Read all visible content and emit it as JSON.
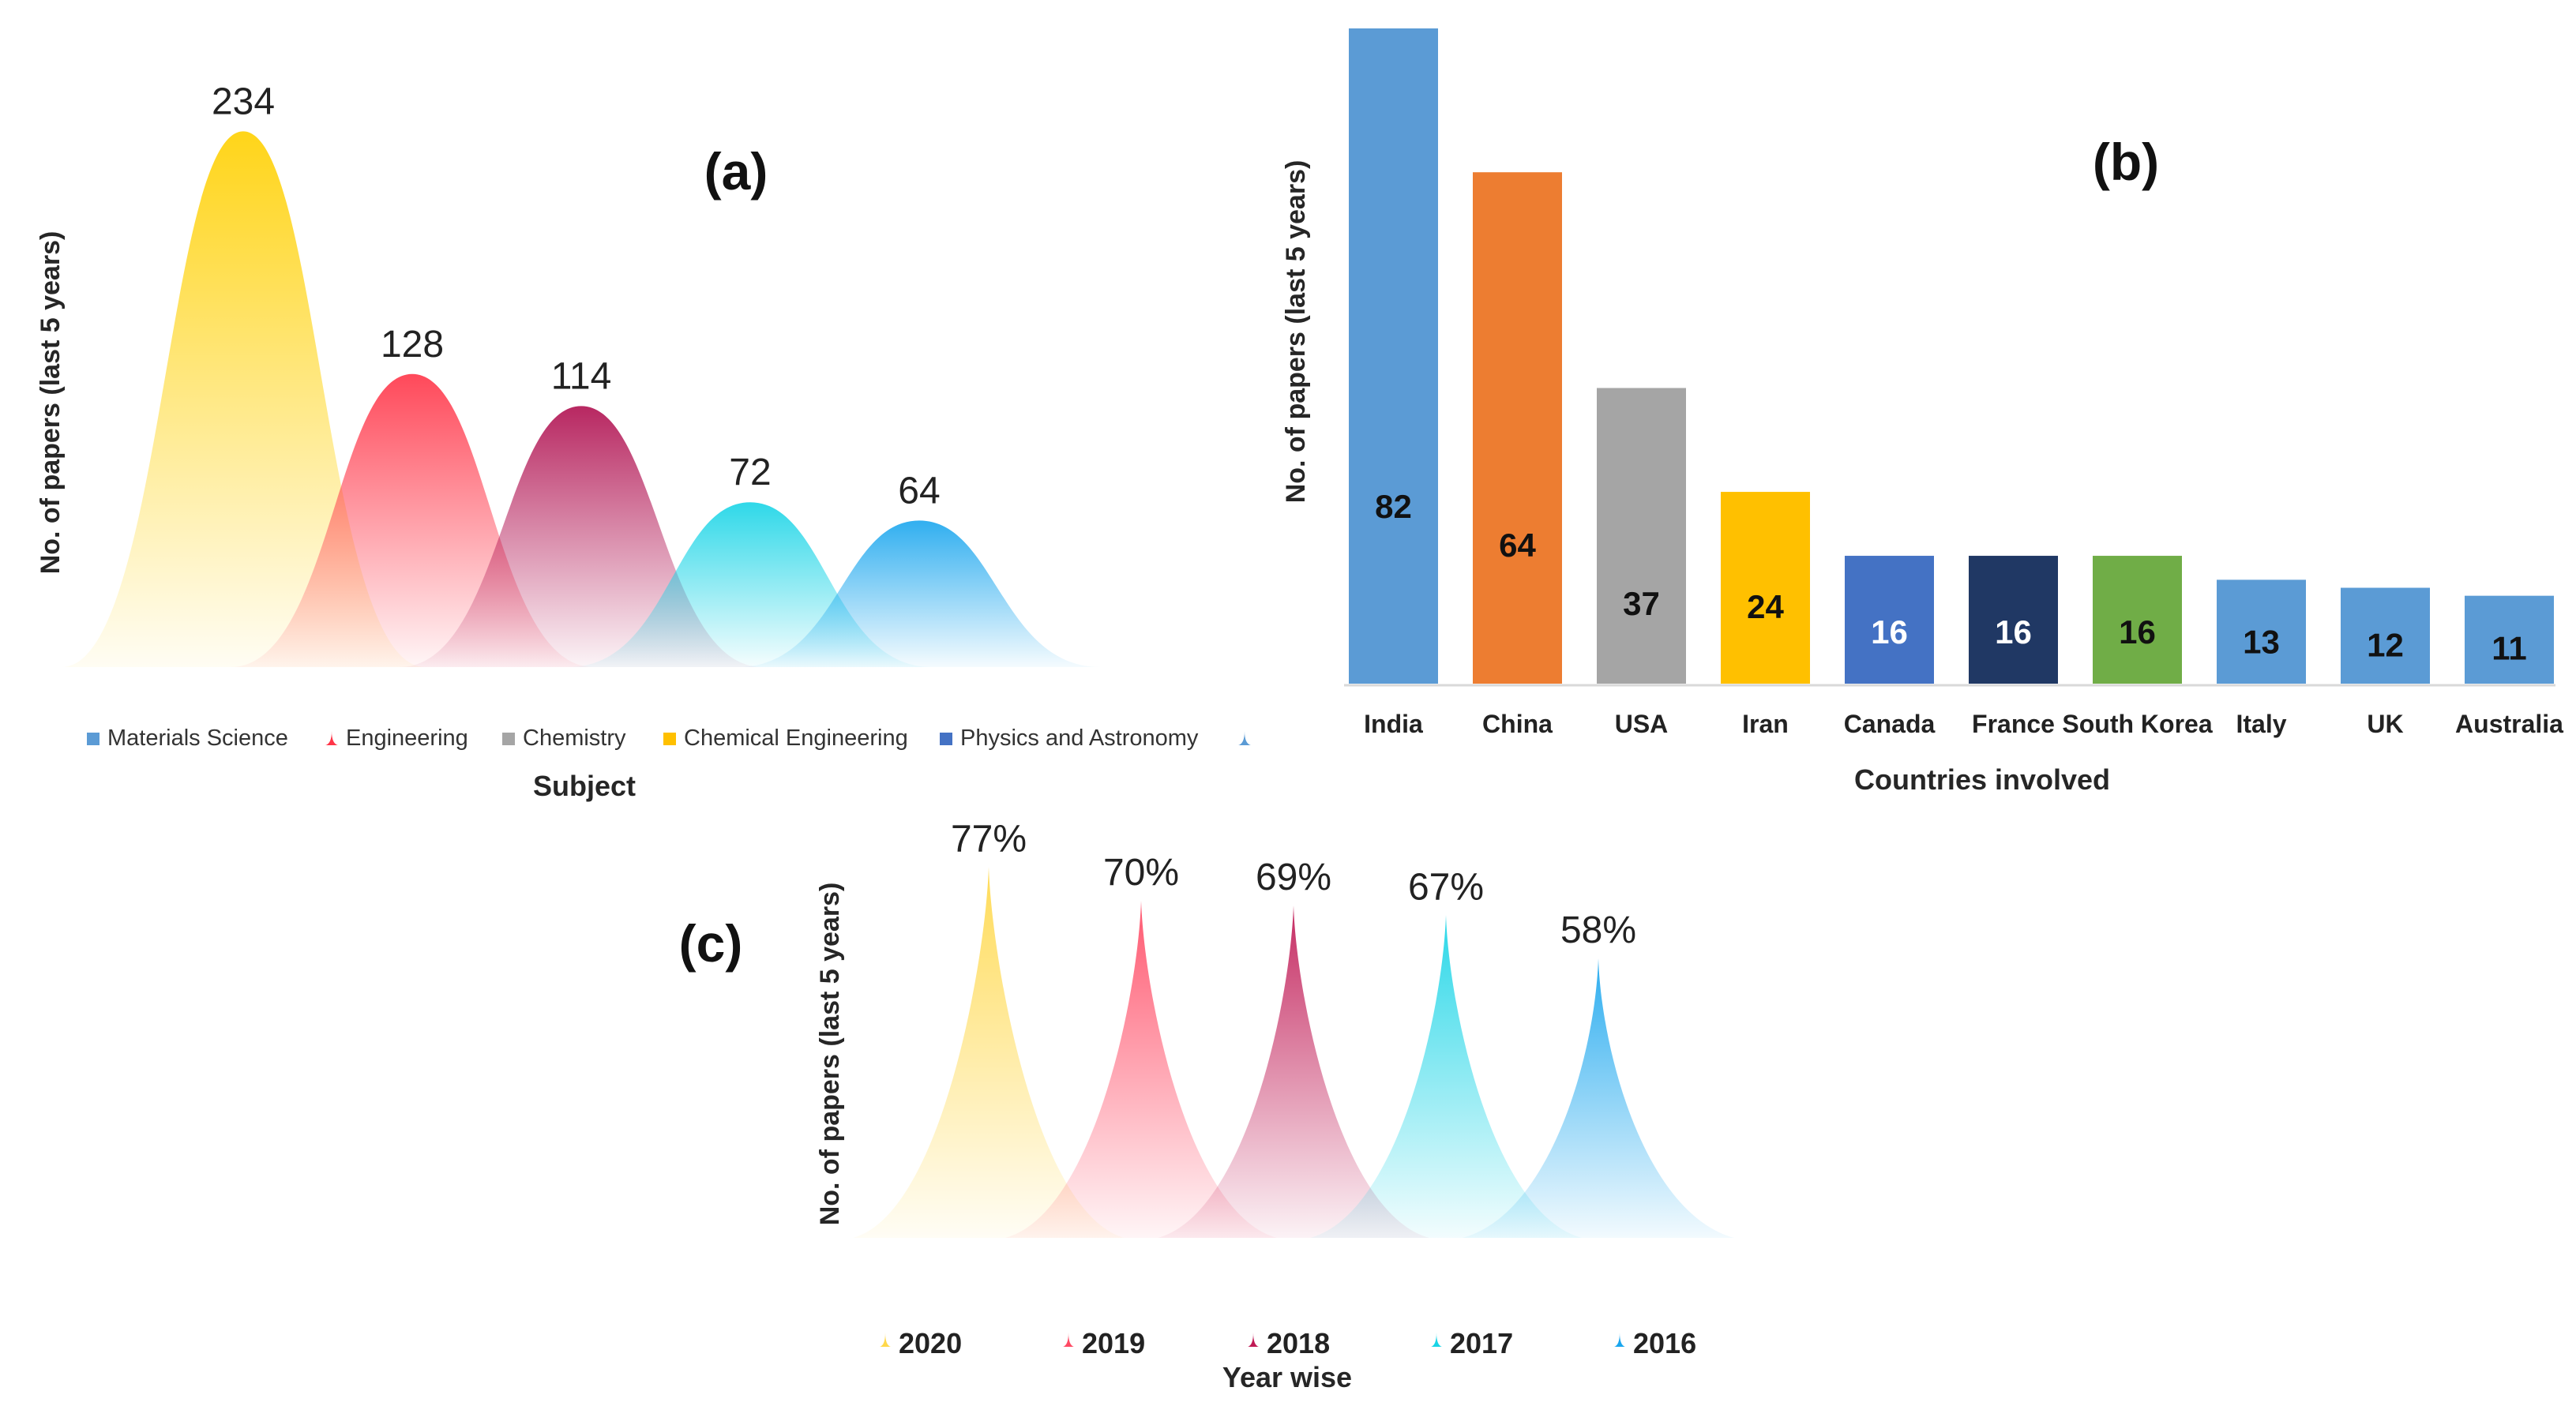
{
  "chart_data": [
    {
      "type": "area",
      "panel_label": "(a)",
      "xlabel": "Subject",
      "ylabel": "No. of papers (last 5 years)",
      "categories": [
        "Materials Science",
        "Engineering",
        "Chemistry",
        "Chemical Engineering",
        "Physics and Astronomy"
      ],
      "values": [
        234,
        128,
        114,
        72,
        64
      ],
      "value_labels": [
        "234",
        "128",
        "114",
        "72",
        "64"
      ],
      "colors": [
        "#FFD000",
        "#FF3548",
        "#B01050",
        "#18D4E6",
        "#1AA6EE"
      ],
      "legend": [
        {
          "label": "Materials Science",
          "color": "#5B9BD5",
          "icon": "square-icon"
        },
        {
          "label": "Engineering",
          "color": "#FF3548",
          "icon": "peak-icon"
        },
        {
          "label": "Chemistry",
          "color": "#A5A5A5",
          "icon": "square-icon"
        },
        {
          "label": "Chemical Engineering",
          "color": "#FFC000",
          "icon": "square-icon"
        },
        {
          "label": "Physics and Astronomy",
          "color": "#4472C4",
          "icon": "square-icon"
        },
        {
          "label": "",
          "color": "#5B9BD5",
          "icon": "peak-icon"
        }
      ]
    },
    {
      "type": "bar",
      "panel_label": "(b)",
      "xlabel": "Countries involved",
      "ylabel": "No. of papers (last 5 years)",
      "categories": [
        "India",
        "China",
        "USA",
        "Iran",
        "Canada",
        "France",
        "South Korea",
        "Italy",
        "UK",
        "Australia"
      ],
      "values": [
        82,
        64,
        37,
        24,
        16,
        16,
        16,
        13,
        12,
        11
      ],
      "value_labels": [
        "82",
        "64",
        "37",
        "24",
        "16",
        "16",
        "16",
        "13",
        "12",
        "11"
      ],
      "colors": [
        "#5B9BD5",
        "#ED7D31",
        "#A5A5A5",
        "#FFC000",
        "#4472C4",
        "#203864",
        "#70AD47",
        "#5B9BD5",
        "#5B9BD5",
        "#5B9BD5"
      ],
      "label_colors": [
        "#111111",
        "#111111",
        "#111111",
        "#111111",
        "#ffffff",
        "#ffffff",
        "#111111",
        "#111111",
        "#111111",
        "#111111"
      ],
      "ylim": [
        0,
        82
      ]
    },
    {
      "type": "area",
      "panel_label": "(c)",
      "xlabel": "Year wise",
      "ylabel": "No. of papers (last 5 years)",
      "categories": [
        "2020",
        "2019",
        "2018",
        "2017",
        "2016"
      ],
      "values": [
        77,
        70,
        69,
        67,
        58
      ],
      "value_labels": [
        "77%",
        "70%",
        "69%",
        "67%",
        "58%"
      ],
      "colors": [
        "#FFD84A",
        "#FF4A64",
        "#C01A55",
        "#18D4E6",
        "#1AA6EE"
      ],
      "legend": [
        {
          "label": "2020",
          "color": "#FFD84A",
          "icon": "peak-icon"
        },
        {
          "label": "2019",
          "color": "#FF4A64",
          "icon": "peak-icon"
        },
        {
          "label": "2018",
          "color": "#C01A55",
          "icon": "peak-icon"
        },
        {
          "label": "2017",
          "color": "#18D4E6",
          "icon": "peak-icon"
        },
        {
          "label": "2016",
          "color": "#1AA6EE",
          "icon": "peak-icon"
        }
      ]
    }
  ]
}
